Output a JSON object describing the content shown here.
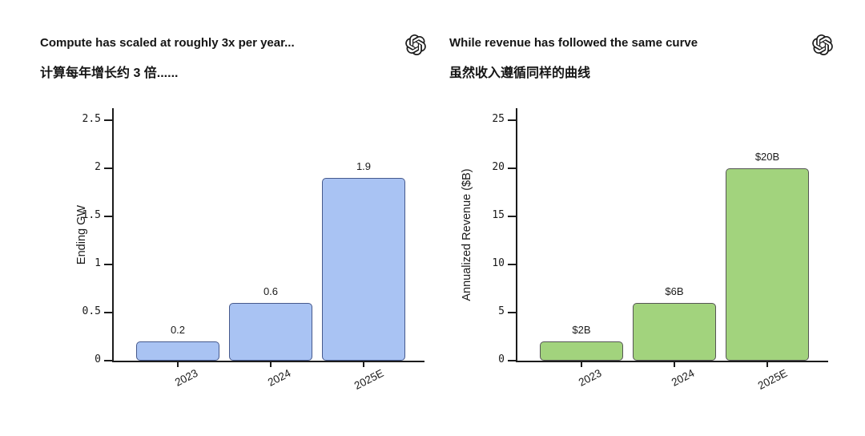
{
  "page": {
    "background": "#ffffff",
    "text_color": "#1a1a1a"
  },
  "branding": {
    "logo_icon": "openai-logo",
    "logo_color": "#1a1a1a"
  },
  "chart_data": [
    {
      "type": "bar",
      "title": "Compute has scaled at roughly 3x per year...",
      "subtitle_zh": "计算每年增长约 3 倍......",
      "ylabel": "Ending GW",
      "xlabel": "",
      "categories": [
        "2023",
        "2024",
        "2025E"
      ],
      "values": [
        0.2,
        0.6,
        1.9
      ],
      "bar_labels": [
        "0.2",
        "0.6",
        "1.9"
      ],
      "ylim": [
        0,
        2.5
      ],
      "yticks": [
        0,
        0.5,
        1,
        1.5,
        2,
        2.5
      ],
      "ytick_labels": [
        "0",
        "0.5",
        "1",
        "1.5",
        "2",
        "2.5"
      ],
      "grid": false,
      "legend": "none",
      "x_tick_rotation_deg": 27,
      "bar_fill": "#a9c3f3",
      "bar_edge": "#46598c"
    },
    {
      "type": "bar",
      "title": "While revenue has followed the same curve",
      "subtitle_zh": "虽然收入遵循同样的曲线",
      "ylabel": "Annualized Revenue ($B)",
      "xlabel": "",
      "categories": [
        "2023",
        "2024",
        "2025E"
      ],
      "values": [
        2,
        6,
        20
      ],
      "bar_labels": [
        "$2B",
        "$6B",
        "$20B"
      ],
      "ylim": [
        0,
        25
      ],
      "yticks": [
        0,
        5,
        10,
        15,
        20,
        25
      ],
      "ytick_labels": [
        "0",
        "5",
        "10",
        "15",
        "20",
        "25"
      ],
      "grid": false,
      "legend": "none",
      "x_tick_rotation_deg": 27,
      "bar_fill": "#a2d37d",
      "bar_edge": "#555555"
    }
  ]
}
